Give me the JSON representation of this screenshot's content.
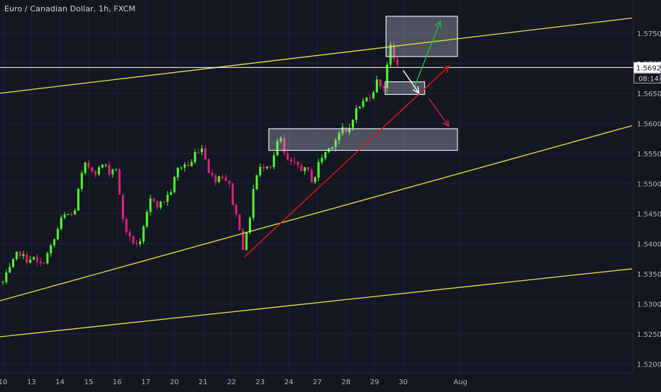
{
  "header": {
    "symbol_title": "Euro / Canadian Dollar, 1h, FXCM"
  },
  "colors": {
    "background": "#131722",
    "grid": "#1e2230",
    "candle_up": "#53ff2e",
    "candle_down": "#e3217e",
    "trendline_yellow": "#e6e64a",
    "trendline_red": "#d71a1a",
    "arrow_green": "#22c03a",
    "arrow_white": "#ffffff",
    "arrow_pink": "#d91e62",
    "zone_fill": "rgba(205,208,220,0.32)",
    "axis_text": "#b2b5be"
  },
  "chart_data": {
    "type": "candlestick",
    "symbol": "Euro / Canadian Dollar",
    "timeframe": "1h",
    "source": "FXCM",
    "y_axis": {
      "range": [
        1.5185,
        1.5805
      ],
      "tick_labels": [
        "1.57500",
        "1.57000",
        "1.56500",
        "1.56000",
        "1.55500",
        "1.55000",
        "1.54500",
        "1.54000",
        "1.53500",
        "1.53000",
        "1.52500",
        "1.52000"
      ],
      "tick_values": [
        1.575,
        1.57,
        1.565,
        1.56,
        1.555,
        1.55,
        1.545,
        1.54,
        1.535,
        1.53,
        1.525,
        1.52
      ]
    },
    "x_axis": {
      "range_days": [
        9.9,
        32.05
      ],
      "tick_labels": [
        "10",
        "13",
        "14",
        "15",
        "16",
        "17",
        "20",
        "21",
        "22",
        "23",
        "24",
        "27",
        "28",
        "29",
        "30",
        "Aug"
      ],
      "tick_days": [
        10,
        11,
        12,
        13,
        14,
        15,
        16,
        17,
        18,
        19,
        20,
        21,
        22,
        23,
        24,
        26
      ]
    },
    "last_price": {
      "label": "1.56928",
      "value": 1.56928,
      "countdown": "08:14"
    },
    "close_path": [
      [
        10.0,
        1.5335
      ],
      [
        10.3,
        1.5362
      ],
      [
        10.55,
        1.5388
      ],
      [
        10.8,
        1.5372
      ],
      [
        11.0,
        1.5378
      ],
      [
        11.3,
        1.5362
      ],
      [
        11.6,
        1.5385
      ],
      [
        11.85,
        1.5412
      ],
      [
        12.0,
        1.5437
      ],
      [
        12.2,
        1.5448
      ],
      [
        12.45,
        1.5447
      ],
      [
        12.55,
        1.5462
      ],
      [
        12.7,
        1.5505
      ],
      [
        12.9,
        1.5532
      ],
      [
        13.1,
        1.5524
      ],
      [
        13.3,
        1.552
      ],
      [
        13.5,
        1.5532
      ],
      [
        13.75,
        1.5519
      ],
      [
        13.95,
        1.553
      ],
      [
        14.15,
        1.545
      ],
      [
        14.4,
        1.5408
      ],
      [
        14.6,
        1.5402
      ],
      [
        14.8,
        1.5398
      ],
      [
        15.0,
        1.544
      ],
      [
        15.2,
        1.548
      ],
      [
        15.45,
        1.5462
      ],
      [
        15.7,
        1.5475
      ],
      [
        15.9,
        1.549
      ],
      [
        16.1,
        1.5523
      ],
      [
        16.35,
        1.5532
      ],
      [
        16.55,
        1.5528
      ],
      [
        16.75,
        1.5555
      ],
      [
        16.95,
        1.556
      ],
      [
        17.1,
        1.5542
      ],
      [
        17.25,
        1.5512
      ],
      [
        17.45,
        1.5508
      ],
      [
        17.65,
        1.5516
      ],
      [
        17.9,
        1.55
      ],
      [
        18.1,
        1.5455
      ],
      [
        18.3,
        1.5425
      ],
      [
        18.42,
        1.5388
      ],
      [
        18.6,
        1.5432
      ],
      [
        18.8,
        1.5505
      ],
      [
        19.0,
        1.5524
      ],
      [
        19.2,
        1.5534
      ],
      [
        19.4,
        1.553
      ],
      [
        19.55,
        1.556
      ],
      [
        19.7,
        1.5578
      ],
      [
        19.85,
        1.5545
      ],
      [
        20.05,
        1.5532
      ],
      [
        20.3,
        1.553
      ],
      [
        20.55,
        1.5522
      ],
      [
        20.75,
        1.5516
      ],
      [
        20.85,
        1.5498
      ],
      [
        21.0,
        1.5528
      ],
      [
        21.2,
        1.5548
      ],
      [
        21.4,
        1.5558
      ],
      [
        21.65,
        1.5575
      ],
      [
        21.85,
        1.559
      ],
      [
        22.05,
        1.558
      ],
      [
        22.2,
        1.5608
      ],
      [
        22.4,
        1.5625
      ],
      [
        22.6,
        1.5635
      ],
      [
        22.8,
        1.5645
      ],
      [
        22.95,
        1.5655
      ],
      [
        23.1,
        1.5672
      ],
      [
        23.2,
        1.5665
      ],
      [
        23.35,
        1.566
      ],
      [
        23.45,
        1.5705
      ],
      [
        23.52,
        1.5745
      ],
      [
        23.58,
        1.5715
      ],
      [
        23.65,
        1.5708
      ],
      [
        23.75,
        1.57
      ],
      [
        23.85,
        1.5693
      ]
    ],
    "zones": [
      {
        "name": "top-zone",
        "x": [
          23.4,
          25.9
        ],
        "y": [
          1.5711,
          1.5778
        ]
      },
      {
        "name": "middle-zone",
        "x": [
          23.37,
          24.75
        ],
        "y": [
          1.5648,
          1.5669
        ]
      },
      {
        "name": "lower-zone",
        "x": [
          19.3,
          25.9
        ],
        "y": [
          1.5555,
          1.5591
        ]
      }
    ],
    "trendlines": [
      {
        "name": "upper-channel-line",
        "color": "trendline_yellow",
        "from": [
          9.9,
          1.565
        ],
        "to": [
          32.0,
          1.5775
        ]
      },
      {
        "name": "middle-channel-line",
        "color": "trendline_yellow",
        "from": [
          9.9,
          1.5305
        ],
        "to": [
          32.0,
          1.5596
        ]
      },
      {
        "name": "lower-channel-line",
        "color": "trendline_yellow",
        "from": [
          9.9,
          1.5245
        ],
        "to": [
          32.0,
          1.5358
        ]
      },
      {
        "name": "ascending-support-line",
        "color": "trendline_red",
        "from": [
          18.45,
          1.5378
        ],
        "to": [
          25.6,
          1.5695
        ]
      },
      {
        "name": "last-price-line",
        "color": "arrow_white",
        "from": [
          9.9,
          1.56928
        ],
        "to": [
          32.0,
          1.56928
        ]
      }
    ],
    "arrows": [
      {
        "name": "green-arrow",
        "color": "arrow_green",
        "from": [
          24.4,
          1.5661
        ],
        "to": [
          25.3,
          1.577
        ]
      },
      {
        "name": "white-arrow",
        "color": "arrow_white",
        "from": [
          24.0,
          1.5688
        ],
        "to": [
          24.55,
          1.565
        ]
      },
      {
        "name": "pink-arrow",
        "color": "arrow_pink",
        "from": [
          24.9,
          1.5641
        ],
        "to": [
          25.6,
          1.5595
        ]
      }
    ]
  }
}
